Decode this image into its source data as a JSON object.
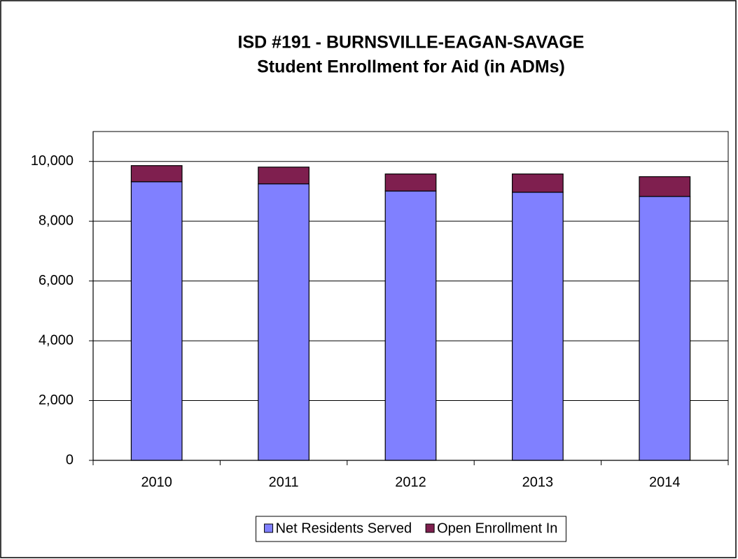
{
  "chart_data": {
    "type": "stacked_bar",
    "title": "ISD #191 - BURNSVILLE-EAGAN-SAVAGE",
    "subtitle": "Student Enrollment for Aid (in ADMs)",
    "categories": [
      "2010",
      "2011",
      "2012",
      "2013",
      "2014"
    ],
    "series": [
      {
        "name": "Net Residents Served",
        "color": "#8080ff",
        "values": [
          9320,
          9250,
          9010,
          8970,
          8830
        ]
      },
      {
        "name": "Open Enrollment In",
        "color": "#7f1f4f",
        "values": [
          540,
          560,
          570,
          610,
          660
        ]
      }
    ],
    "ylim": [
      0,
      11000
    ],
    "yticks": [
      0,
      {
        "value": 2000,
        "label": "2,000"
      },
      {
        "value": 4000,
        "label": "4,000"
      },
      {
        "value": 6000,
        "label": "6,000"
      },
      {
        "value": 8000,
        "label": "8,000"
      },
      {
        "value": 10000,
        "label": "10,000"
      }
    ],
    "grid": true,
    "legend": "bottom"
  }
}
